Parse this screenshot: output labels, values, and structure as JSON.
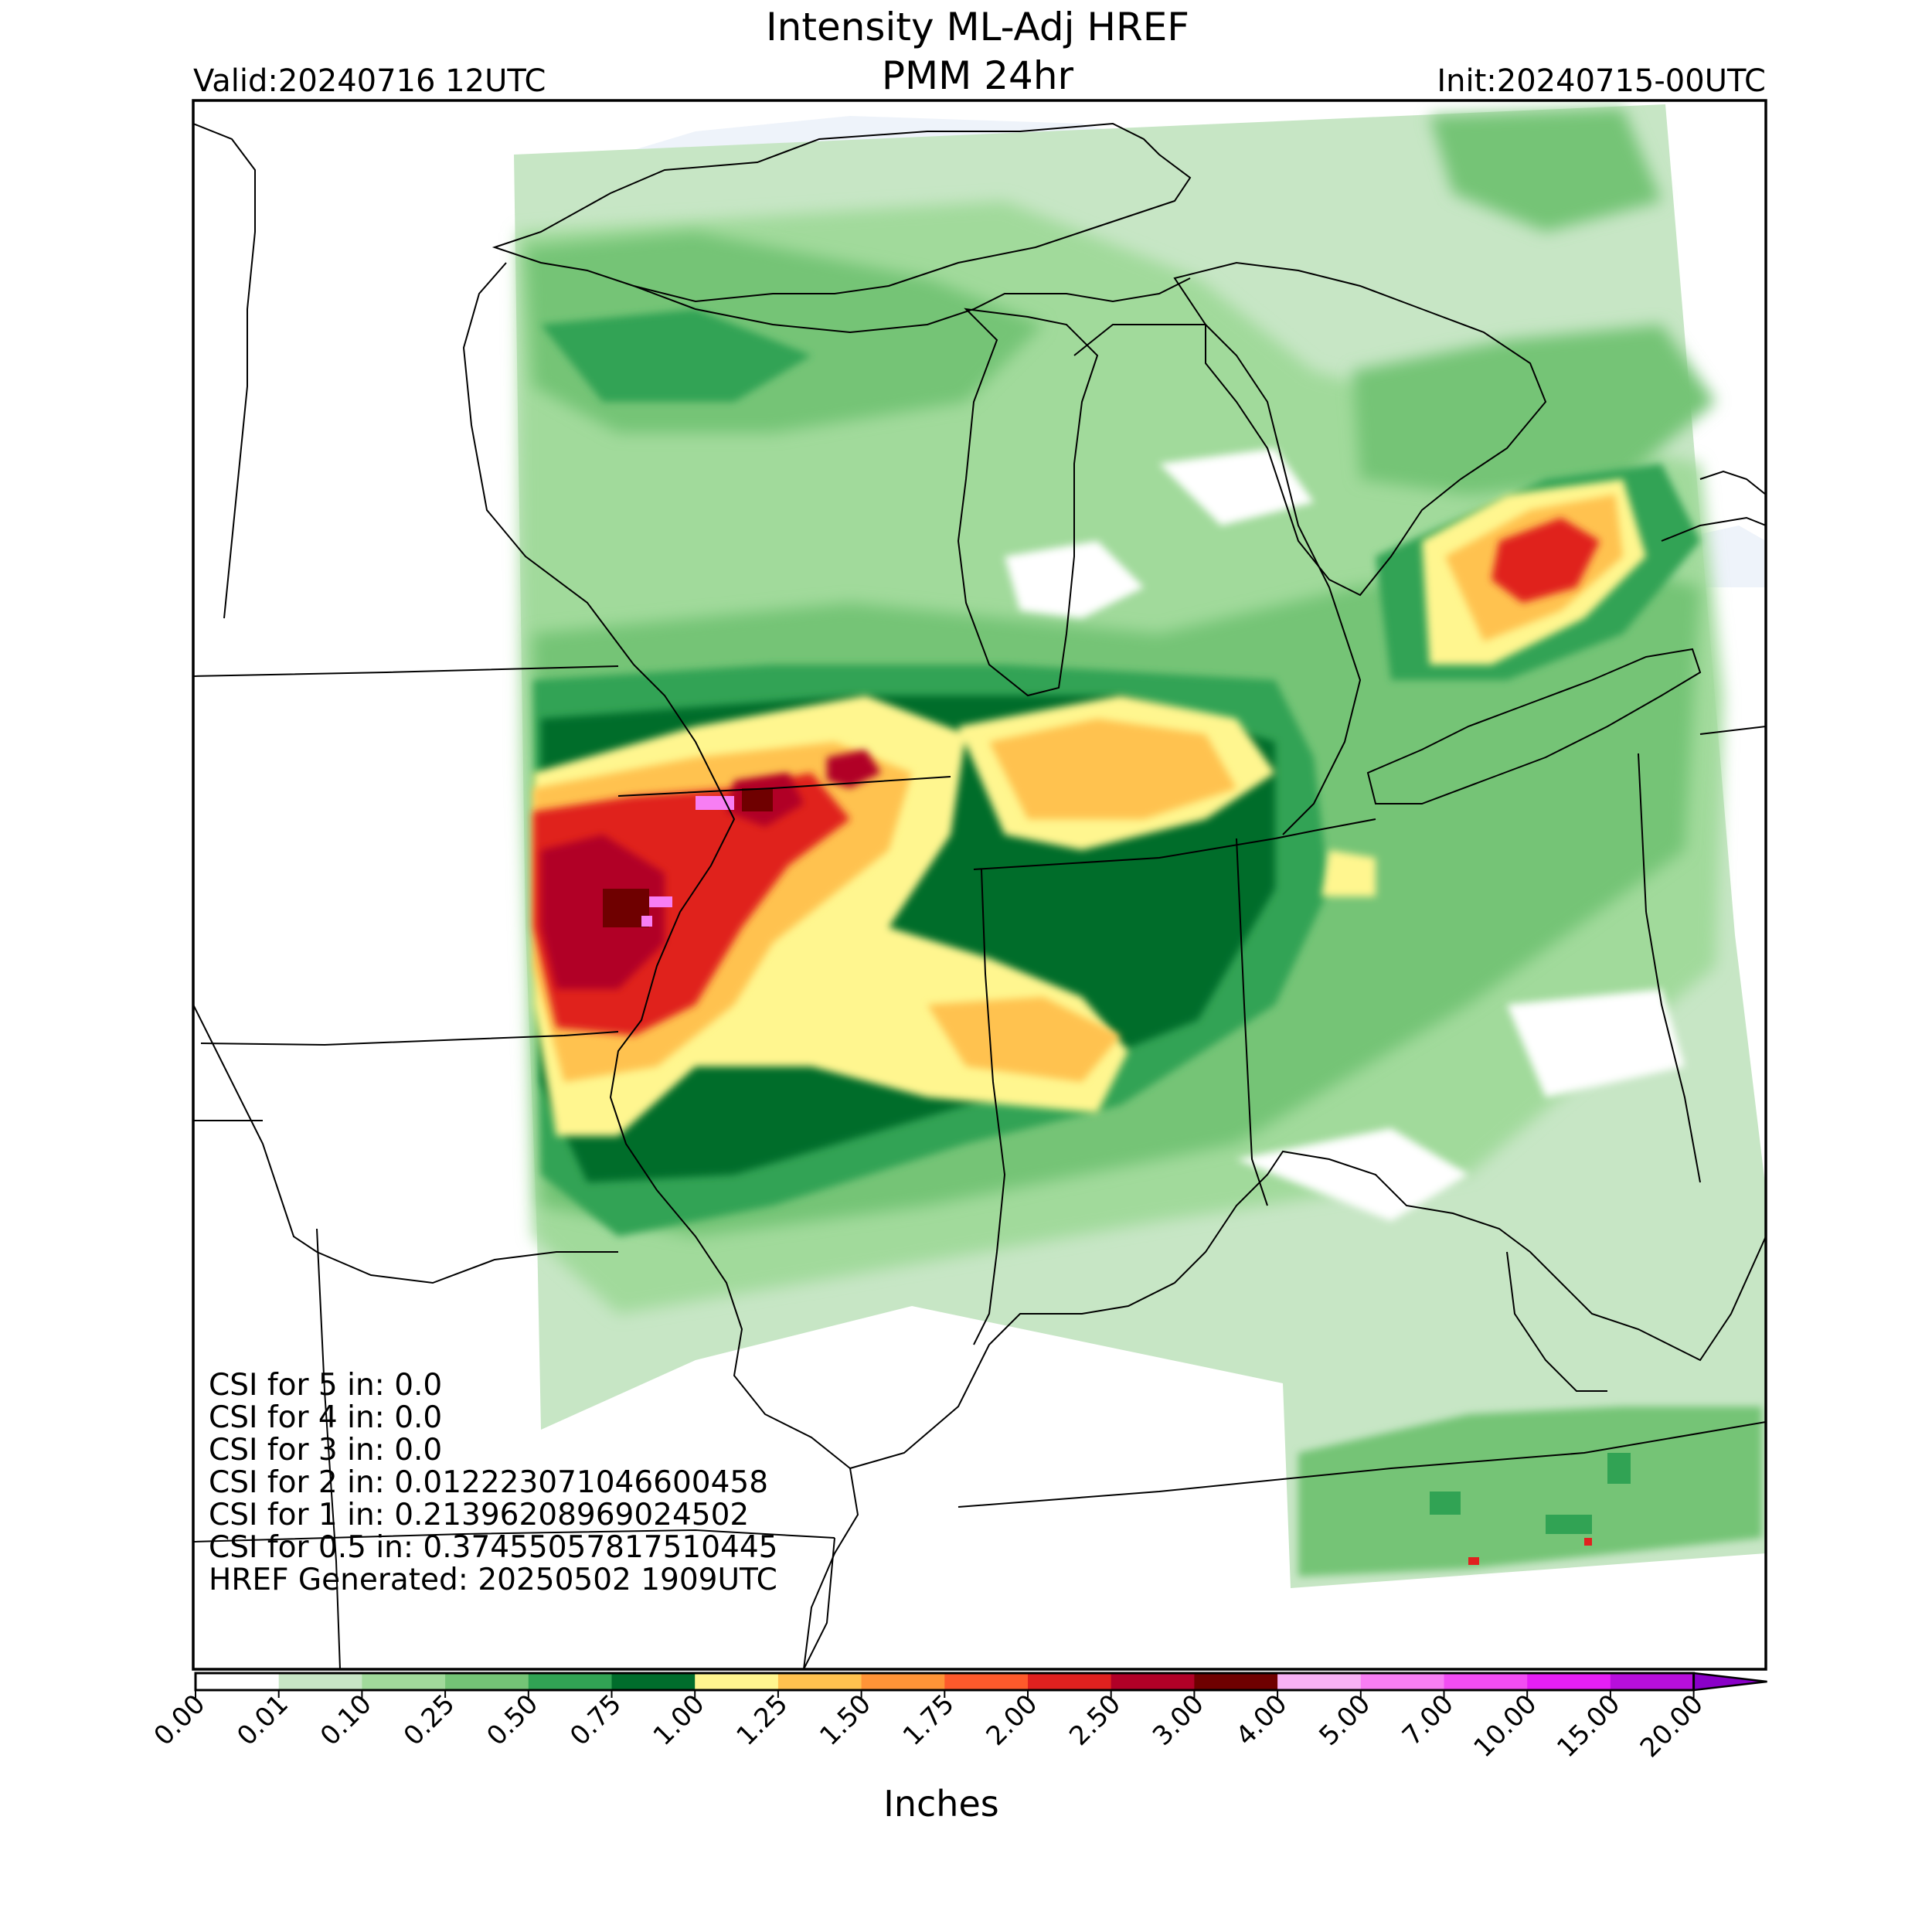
{
  "header": {
    "title_line1": "Intensity ML-Adj HREF",
    "title_line2": "PMM 24hr",
    "valid": "Valid:20240716 12UTC",
    "init": "Init:20240715-00UTC"
  },
  "stats": {
    "lines": [
      "CSI for 5 in: 0.0",
      "CSI for 4 in: 0.0",
      "CSI for 3 in: 0.0",
      "CSI for 2 in: 0.012223071046600458",
      "CSI for 1 in: 0.21396208969024502",
      "CSI for 0.5 in: 0.37455057817510445",
      "HREF Generated: 20250502 1909UTC"
    ]
  },
  "colorbar": {
    "label": "Inches",
    "ticks": [
      "0.00",
      "0.01",
      "0.10",
      "0.25",
      "0.50",
      "0.75",
      "1.00",
      "1.25",
      "1.50",
      "1.75",
      "2.00",
      "2.50",
      "3.00",
      "4.00",
      "5.00",
      "7.00",
      "10.00",
      "15.00",
      "20.00"
    ],
    "colors": [
      "#ffffff",
      "#c7e6c5",
      "#a1da9b",
      "#74c476",
      "#31a354",
      "#006d2c",
      "#fff68f",
      "#ffc24f",
      "#ff9437",
      "#fe5a2b",
      "#e0211f",
      "#b10027",
      "#6f0000",
      "#f7b1f4",
      "#f77ef3",
      "#f24df3",
      "#e51ff6",
      "#b70fdc",
      "#8a00c8"
    ]
  },
  "colors": {
    "water": "#eef3fa",
    "boundary": "#000000"
  }
}
